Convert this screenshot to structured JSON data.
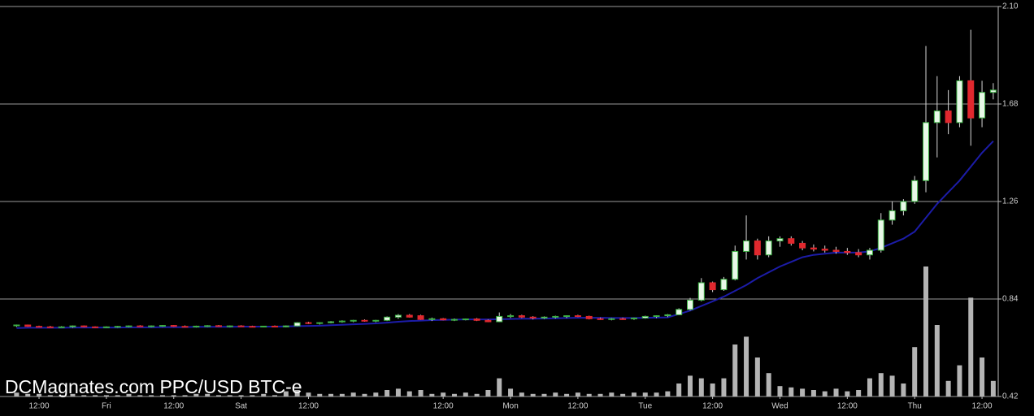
{
  "chart_data": {
    "type": "candlestick",
    "watermark": "DCMagnates.com PPC/USD BTC-e",
    "categories": [
      null,
      null,
      "12:00",
      null,
      null,
      null,
      null,
      null,
      "Fri",
      null,
      null,
      null,
      null,
      null,
      "12:00",
      null,
      null,
      null,
      null,
      null,
      "Sat",
      null,
      null,
      null,
      null,
      null,
      "12:00",
      null,
      null,
      null,
      null,
      null,
      null,
      null,
      null,
      null,
      null,
      null,
      "12:00",
      null,
      null,
      null,
      null,
      null,
      "Mon",
      null,
      null,
      null,
      null,
      null,
      "12:00",
      null,
      null,
      null,
      null,
      null,
      "Tue",
      null,
      null,
      null,
      null,
      null,
      "12:00",
      null,
      null,
      null,
      null,
      null,
      "Wed",
      null,
      null,
      null,
      null,
      null,
      "12:00",
      null,
      null,
      null,
      null,
      null,
      "Thu",
      null,
      null,
      null,
      null,
      null,
      "12:00",
      null
    ],
    "open": [
      0.725,
      0.728,
      0.722,
      0.72,
      0.719,
      0.72,
      0.724,
      0.72,
      0.718,
      0.72,
      0.722,
      0.724,
      0.722,
      0.724,
      0.726,
      0.722,
      0.72,
      0.723,
      0.725,
      0.722,
      0.724,
      0.722,
      0.721,
      0.723,
      0.72,
      0.724,
      0.738,
      0.735,
      0.738,
      0.742,
      0.745,
      0.748,
      0.745,
      0.748,
      0.762,
      0.77,
      0.768,
      0.752,
      0.755,
      0.75,
      0.752,
      0.754,
      0.748,
      0.742,
      0.765,
      0.768,
      0.762,
      0.758,
      0.762,
      0.765,
      0.768,
      0.765,
      0.755,
      0.752,
      0.755,
      0.755,
      0.758,
      0.765,
      0.768,
      0.772,
      0.795,
      0.835,
      0.91,
      0.88,
      0.925,
      1.045,
      1.09,
      1.03,
      1.09,
      1.1,
      1.08,
      1.06,
      1.055,
      1.05,
      1.045,
      1.04,
      1.03,
      1.05,
      1.18,
      1.22,
      1.26,
      1.35,
      1.6,
      1.65,
      1.6,
      1.78,
      1.62,
      1.73
    ],
    "high": [
      0.73,
      0.73,
      0.725,
      0.724,
      0.723,
      0.726,
      0.726,
      0.722,
      0.722,
      0.724,
      0.726,
      0.727,
      0.726,
      0.728,
      0.728,
      0.726,
      0.725,
      0.727,
      0.728,
      0.726,
      0.727,
      0.725,
      0.724,
      0.726,
      0.726,
      0.74,
      0.742,
      0.74,
      0.745,
      0.748,
      0.75,
      0.752,
      0.75,
      0.765,
      0.775,
      0.775,
      0.772,
      0.76,
      0.758,
      0.756,
      0.756,
      0.758,
      0.752,
      0.782,
      0.775,
      0.772,
      0.766,
      0.765,
      0.768,
      0.77,
      0.772,
      0.768,
      0.76,
      0.758,
      0.76,
      0.76,
      0.768,
      0.77,
      0.775,
      0.8,
      0.845,
      0.93,
      0.915,
      0.935,
      1.07,
      1.2,
      1.1,
      1.11,
      1.11,
      1.11,
      1.09,
      1.075,
      1.07,
      1.065,
      1.06,
      1.055,
      1.06,
      1.21,
      1.26,
      1.27,
      1.37,
      1.93,
      1.8,
      1.74,
      1.8,
      2.0,
      1.78,
      1.77
    ],
    "low": [
      0.72,
      0.72,
      0.718,
      0.716,
      0.716,
      0.716,
      0.718,
      0.715,
      0.715,
      0.716,
      0.718,
      0.72,
      0.718,
      0.72,
      0.72,
      0.718,
      0.717,
      0.719,
      0.72,
      0.718,
      0.72,
      0.718,
      0.718,
      0.719,
      0.718,
      0.722,
      0.732,
      0.73,
      0.735,
      0.738,
      0.74,
      0.742,
      0.74,
      0.745,
      0.755,
      0.76,
      0.75,
      0.745,
      0.748,
      0.745,
      0.748,
      0.745,
      0.74,
      0.74,
      0.758,
      0.758,
      0.752,
      0.754,
      0.756,
      0.758,
      0.762,
      0.752,
      0.75,
      0.748,
      0.75,
      0.75,
      0.755,
      0.758,
      0.762,
      0.77,
      0.79,
      0.83,
      0.87,
      0.875,
      0.92,
      1.01,
      1.01,
      1.02,
      1.065,
      1.07,
      1.05,
      1.045,
      1.04,
      1.035,
      1.03,
      1.02,
      1.01,
      1.04,
      1.16,
      1.2,
      1.25,
      1.3,
      1.45,
      1.55,
      1.58,
      1.5,
      1.58,
      1.7
    ],
    "close": [
      0.728,
      0.722,
      0.72,
      0.719,
      0.72,
      0.724,
      0.72,
      0.718,
      0.72,
      0.722,
      0.724,
      0.722,
      0.724,
      0.726,
      0.722,
      0.72,
      0.723,
      0.725,
      0.722,
      0.724,
      0.722,
      0.721,
      0.723,
      0.72,
      0.724,
      0.738,
      0.735,
      0.738,
      0.742,
      0.745,
      0.748,
      0.745,
      0.748,
      0.762,
      0.77,
      0.762,
      0.752,
      0.755,
      0.75,
      0.752,
      0.754,
      0.748,
      0.742,
      0.765,
      0.768,
      0.762,
      0.758,
      0.762,
      0.765,
      0.768,
      0.765,
      0.755,
      0.752,
      0.755,
      0.752,
      0.758,
      0.765,
      0.768,
      0.772,
      0.795,
      0.835,
      0.91,
      0.88,
      0.925,
      1.045,
      1.09,
      1.03,
      1.09,
      1.1,
      1.08,
      1.06,
      1.055,
      1.05,
      1.045,
      1.04,
      1.03,
      1.05,
      1.18,
      1.22,
      1.26,
      1.35,
      1.6,
      1.65,
      1.6,
      1.78,
      1.62,
      1.73,
      1.74
    ],
    "up_color": "#3cb043",
    "down_color": "#e0282e",
    "volume": {
      "color": "#b4b4b4",
      "axis": "y2",
      "values": [
        3,
        2,
        2,
        1,
        1,
        2,
        1,
        1,
        1,
        1,
        2,
        1,
        1,
        1,
        1,
        1,
        2,
        2,
        1,
        1,
        1,
        1,
        2,
        1,
        4,
        5,
        3,
        2,
        2,
        2,
        3,
        2,
        3,
        5,
        6,
        4,
        5,
        2,
        3,
        2,
        3,
        2,
        5,
        14,
        6,
        3,
        2,
        2,
        3,
        2,
        3,
        2,
        2,
        3,
        2,
        3,
        3,
        3,
        4,
        10,
        16,
        14,
        10,
        14,
        40,
        46,
        30,
        18,
        8,
        7,
        6,
        5,
        4,
        6,
        4,
        5,
        14,
        18,
        16,
        10,
        38,
        100,
        55,
        12,
        24,
        76,
        30,
        12
      ]
    },
    "moving_average": {
      "color": "#1c1ca8",
      "values": [
        0.715,
        0.716,
        0.716,
        0.716,
        0.716,
        0.717,
        0.717,
        0.717,
        0.717,
        0.717,
        0.718,
        0.718,
        0.718,
        0.719,
        0.719,
        0.719,
        0.72,
        0.72,
        0.72,
        0.72,
        0.721,
        0.721,
        0.721,
        0.721,
        0.722,
        0.723,
        0.724,
        0.725,
        0.727,
        0.729,
        0.731,
        0.733,
        0.735,
        0.738,
        0.742,
        0.745,
        0.747,
        0.749,
        0.75,
        0.751,
        0.752,
        0.752,
        0.752,
        0.753,
        0.754,
        0.755,
        0.755,
        0.756,
        0.757,
        0.758,
        0.759,
        0.759,
        0.759,
        0.758,
        0.758,
        0.758,
        0.759,
        0.76,
        0.761,
        0.775,
        0.79,
        0.81,
        0.83,
        0.85,
        0.875,
        0.9,
        0.93,
        0.955,
        0.98,
        1.0,
        1.02,
        1.03,
        1.035,
        1.04,
        1.04,
        1.04,
        1.045,
        1.06,
        1.08,
        1.1,
        1.13,
        1.19,
        1.25,
        1.3,
        1.35,
        1.41,
        1.47,
        1.52
      ]
    },
    "ylim": [
      0.42,
      2.1
    ],
    "yticks": [
      0.42,
      0.84,
      1.26,
      1.68,
      {
        "value": 2.1,
        "label": "2.10"
      }
    ],
    "y2lim": [
      0,
      300
    ],
    "grid": true
  }
}
